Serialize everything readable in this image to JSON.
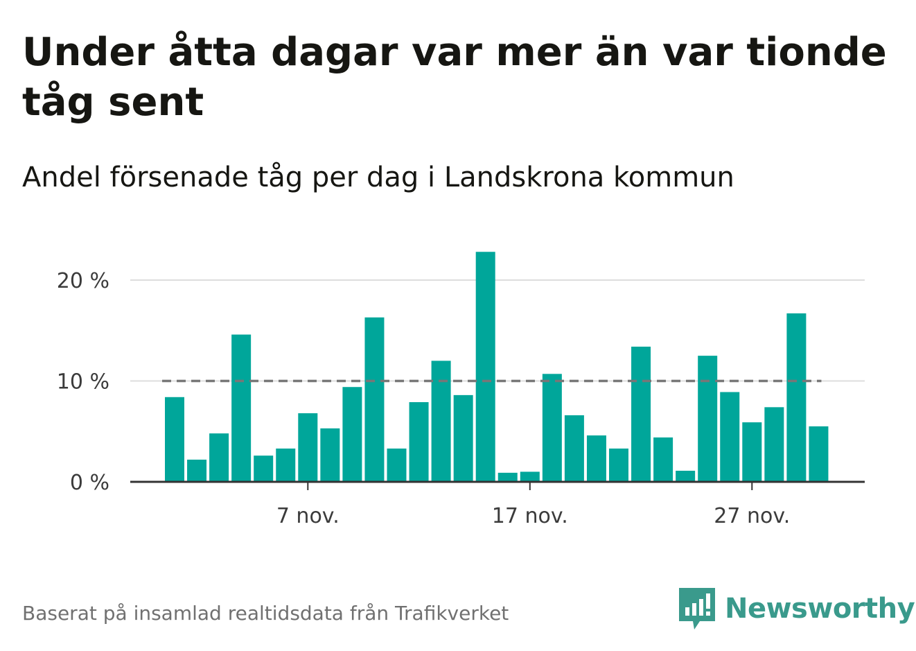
{
  "title": "Under åtta dagar var mer än var tionde tåg sent",
  "subtitle": "Andel försenade tåg per dag i Landskrona kommun",
  "source": "Baserat på insamlad realtidsdata från Trafikverket",
  "brand": {
    "name": "Newsworthy",
    "icon": "newsworthy-logo-icon",
    "color": "#3a9a8c"
  },
  "colors": {
    "bar": "#00a69a",
    "reference_line": "#777777",
    "grid": "#dddddd",
    "axis": "#333333"
  },
  "chart_data": {
    "type": "bar",
    "x": [
      "2022-11-01",
      "2022-11-02",
      "2022-11-03",
      "2022-11-04",
      "2022-11-05",
      "2022-11-06",
      "2022-11-07",
      "2022-11-08",
      "2022-11-09",
      "2022-11-10",
      "2022-11-11",
      "2022-11-12",
      "2022-11-13",
      "2022-11-14",
      "2022-11-15",
      "2022-11-16",
      "2022-11-17",
      "2022-11-18",
      "2022-11-19",
      "2022-11-20",
      "2022-11-21",
      "2022-11-22",
      "2022-11-23",
      "2022-11-24",
      "2022-11-25",
      "2022-11-26",
      "2022-11-27",
      "2022-11-28",
      "2022-11-29",
      "2022-11-30"
    ],
    "values": [
      8.4,
      2.2,
      4.8,
      14.6,
      2.6,
      3.3,
      6.8,
      5.3,
      9.4,
      16.3,
      3.3,
      7.9,
      12.0,
      8.6,
      22.8,
      0.9,
      1.0,
      10.7,
      6.6,
      4.6,
      3.3,
      13.4,
      4.4,
      1.1,
      12.5,
      8.9,
      5.9,
      7.4,
      16.7,
      5.5
    ],
    "unit": "%",
    "ylim": [
      0,
      23
    ],
    "y_ticks": [
      {
        "value": 0,
        "label": "0 %"
      },
      {
        "value": 10,
        "label": "10 %"
      },
      {
        "value": 20,
        "label": "20 %"
      }
    ],
    "x_ticks": [
      {
        "date": "2022-11-07",
        "label": "7 nov."
      },
      {
        "date": "2022-11-17",
        "label": "17 nov."
      },
      {
        "date": "2022-11-27",
        "label": "27 nov."
      }
    ],
    "reference_line": {
      "value": 10,
      "style": "dashed"
    },
    "grid": true,
    "legend": false
  }
}
